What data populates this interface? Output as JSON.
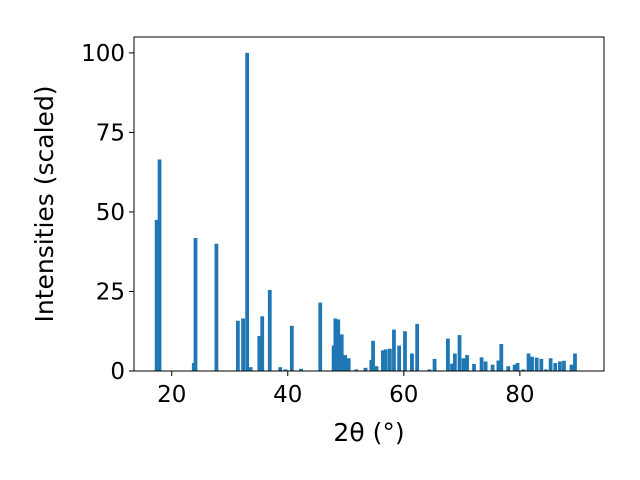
{
  "chart_data": {
    "type": "bar",
    "xlabel": "2θ (°)",
    "ylabel": "Intensities (scaled)",
    "title": "",
    "xlim": [
      13.5,
      94.5
    ],
    "ylim": [
      0,
      105
    ],
    "xticks": [
      20,
      40,
      60,
      80
    ],
    "yticks": [
      0,
      25,
      50,
      75,
      100
    ],
    "bar_color": "#1f77b4",
    "bar_width": 0.65,
    "grid": false,
    "legend": "none",
    "x": [
      17.4,
      17.9,
      23.8,
      24.1,
      27.7,
      31.4,
      32.3,
      33.0,
      33.6,
      35.1,
      35.6,
      36.9,
      38.7,
      39.6,
      40.7,
      42.3,
      45.6,
      47.9,
      48.2,
      48.7,
      49.3,
      49.9,
      50.5,
      51.8,
      53.4,
      54.4,
      54.7,
      55.3,
      56.4,
      56.9,
      57.6,
      58.3,
      59.2,
      60.2,
      61.4,
      62.3,
      64.4,
      65.3,
      67.6,
      68.3,
      68.8,
      69.6,
      70.3,
      70.9,
      72.1,
      73.4,
      74.1,
      75.3,
      76.3,
      76.8,
      78.0,
      79.1,
      79.6,
      80.6,
      81.5,
      82.1,
      82.9,
      83.7,
      84.5,
      85.3,
      86.1,
      86.9,
      87.6,
      88.9,
      89.5
    ],
    "values": [
      47.5,
      66.5,
      2.5,
      41.8,
      40.0,
      15.8,
      16.5,
      100.0,
      1.2,
      11.0,
      17.2,
      25.5,
      1.2,
      0.5,
      14.2,
      0.7,
      21.5,
      8.0,
      16.5,
      16.2,
      11.5,
      5.0,
      4.0,
      0.5,
      1.0,
      3.5,
      9.5,
      1.5,
      6.5,
      6.8,
      7.0,
      13.0,
      8.0,
      12.5,
      5.5,
      14.8,
      0.5,
      3.8,
      10.2,
      2.3,
      5.5,
      11.3,
      4.0,
      5.0,
      2.2,
      4.3,
      3.0,
      2.0,
      3.3,
      8.5,
      1.5,
      2.0,
      2.5,
      0.5,
      5.5,
      4.5,
      4.2,
      3.8,
      0.5,
      4.0,
      2.5,
      3.0,
      3.2,
      2.0,
      5.5
    ]
  }
}
